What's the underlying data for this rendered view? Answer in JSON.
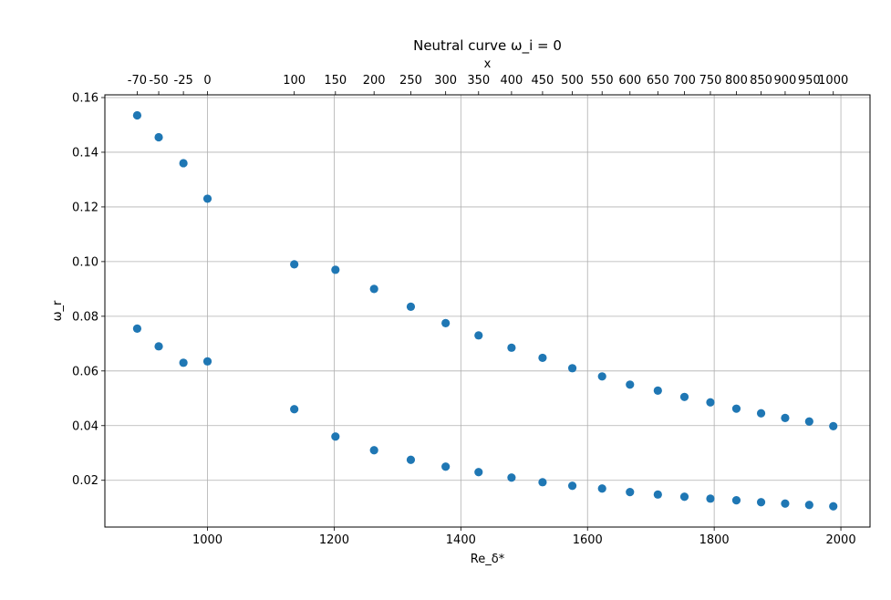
{
  "chart_data": {
    "type": "scatter",
    "title": "Neutral curve ω_i = 0",
    "xlabel": "Re_δ*",
    "ylabel": "ω_r",
    "top_xlabel": "x",
    "xlim": [
      838,
      2046
    ],
    "ylim": [
      0.0029,
      0.161
    ],
    "x_ticks": [
      1000,
      1200,
      1400,
      1600,
      1800,
      2000
    ],
    "x_tick_labels": [
      "1000",
      "1200",
      "1400",
      "1600",
      "1800",
      "2000"
    ],
    "y_ticks": [
      0.02,
      0.04,
      0.06,
      0.08,
      0.1,
      0.12,
      0.14,
      0.16
    ],
    "y_tick_labels": [
      "0.02",
      "0.04",
      "0.06",
      "0.08",
      "0.10",
      "0.12",
      "0.14",
      "0.16"
    ],
    "top_ticks": [
      889,
      923,
      962,
      1000,
      1137,
      1202,
      1263,
      1321,
      1376,
      1428,
      1480,
      1529,
      1576,
      1623,
      1667,
      1711,
      1753,
      1794,
      1835,
      1874,
      1912,
      1950,
      1988
    ],
    "top_tick_labels": [
      "-70",
      "-50",
      "-25",
      "0",
      "100",
      "150",
      "200",
      "250",
      "300",
      "350",
      "400",
      "450",
      "500",
      "550",
      "600",
      "650",
      "700",
      "750",
      "800",
      "850",
      "900",
      "950",
      "1000"
    ],
    "grid": true,
    "marker_color": "#1f77b4",
    "series": [
      {
        "name": "",
        "x": [
          889,
          923,
          962,
          1000,
          1137,
          1202,
          1263,
          1321,
          1376,
          1428,
          1480,
          1529,
          1576,
          1623,
          1667,
          1711,
          1753,
          1794,
          1835,
          1874,
          1912,
          1950,
          1988
        ],
        "y": [
          0.1535,
          0.1455,
          0.136,
          0.123,
          0.099,
          0.097,
          0.09,
          0.0835,
          0.0775,
          0.073,
          0.0685,
          0.0648,
          0.061,
          0.058,
          0.055,
          0.0528,
          0.0505,
          0.0485,
          0.0462,
          0.0445,
          0.0428,
          0.0415,
          0.0398
        ]
      },
      {
        "name": "",
        "x": [
          889,
          923,
          962,
          1000,
          1137,
          1202,
          1263,
          1321,
          1376,
          1428,
          1480,
          1529,
          1576,
          1623,
          1667,
          1711,
          1753,
          1794,
          1835,
          1874,
          1912,
          1950,
          1988
        ],
        "y": [
          0.0755,
          0.069,
          0.063,
          0.0635,
          0.046,
          0.036,
          0.031,
          0.0275,
          0.025,
          0.023,
          0.021,
          0.0193,
          0.018,
          0.017,
          0.0157,
          0.0148,
          0.014,
          0.0133,
          0.0127,
          0.012,
          0.0115,
          0.011,
          0.0105
        ]
      }
    ]
  }
}
